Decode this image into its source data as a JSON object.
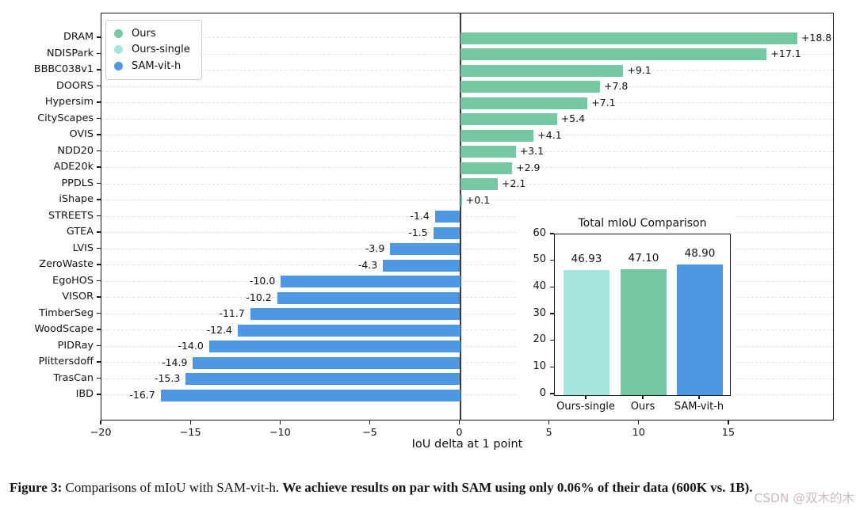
{
  "figure": {
    "caption_prefix": "Figure 3:",
    "caption_normal": " Comparisons of mIoU with SAM-vit-h. ",
    "caption_bold": "We achieve results on par with SAM using only 0.06% of their data (600K vs. 1B).",
    "watermark": "CSDN @双木的木"
  },
  "chart_data": {
    "type": "bar",
    "orientation": "horizontal",
    "title": "",
    "xlabel": "IoU delta at 1 point",
    "ylabel": "",
    "xlim": [
      -20,
      20.75
    ],
    "xticks": [
      -20,
      -15,
      -10,
      -5,
      0,
      5,
      10,
      15
    ],
    "xtick_labels": [
      "−20",
      "−15",
      "−10",
      "−5",
      "0",
      "5",
      "10",
      "15"
    ],
    "grid": "dashed horizontal line per category",
    "categories": [
      "DRAM",
      "NDISPark",
      "BBBC038v1",
      "DOORS",
      "Hypersim",
      "CityScapes",
      "OVIS",
      "NDD20",
      "ADE20k",
      "PPDLS",
      "iShape",
      "STREETS",
      "GTEA",
      "LVIS",
      "ZeroWaste",
      "EgoHOS",
      "VISOR",
      "TimberSeg",
      "WoodScape",
      "PIDRay",
      "Plittersdoff",
      "TrasCan",
      "IBD"
    ],
    "values": [
      18.8,
      17.1,
      9.1,
      7.8,
      7.1,
      5.4,
      4.1,
      3.1,
      2.9,
      2.1,
      0.1,
      -1.4,
      -1.5,
      -3.9,
      -4.3,
      -10.0,
      -10.2,
      -11.7,
      -12.4,
      -14.0,
      -14.9,
      -15.3,
      -16.7
    ],
    "value_labels": [
      "+18.8",
      "+17.1",
      "+9.1",
      "+7.8",
      "+7.1",
      "+5.4",
      "+4.1",
      "+3.1",
      "+2.9",
      "+2.1",
      "+0.1",
      "-1.4",
      "-1.5",
      "-3.9",
      "-4.3",
      "-10.0",
      "-10.2",
      "-11.7",
      "-12.4",
      "-14.0",
      "-14.9",
      "-15.3",
      "-16.7"
    ],
    "colors": {
      "positive": "#76c7a4",
      "negative": "#4d97e3"
    },
    "legend": {
      "position": "upper-left",
      "items": [
        {
          "label": "Ours",
          "color": "#76c7a4"
        },
        {
          "label": "Ours-single",
          "color": "#a6e4de"
        },
        {
          "label": "SAM-vit-h",
          "color": "#4d97e3"
        }
      ]
    },
    "inset": {
      "type": "bar",
      "title": "Total mIoU Comparison",
      "categories": [
        "Ours-single",
        "Ours",
        "SAM-vit-h"
      ],
      "values": [
        46.93,
        47.1,
        48.9
      ],
      "value_labels": [
        "46.93",
        "47.10",
        "48.90"
      ],
      "bar_colors": [
        "#a6e4de",
        "#76c7a4",
        "#4d97e3"
      ],
      "ylim": [
        0,
        60
      ],
      "yticks": [
        0,
        10,
        20,
        30,
        40,
        50,
        60
      ]
    }
  }
}
